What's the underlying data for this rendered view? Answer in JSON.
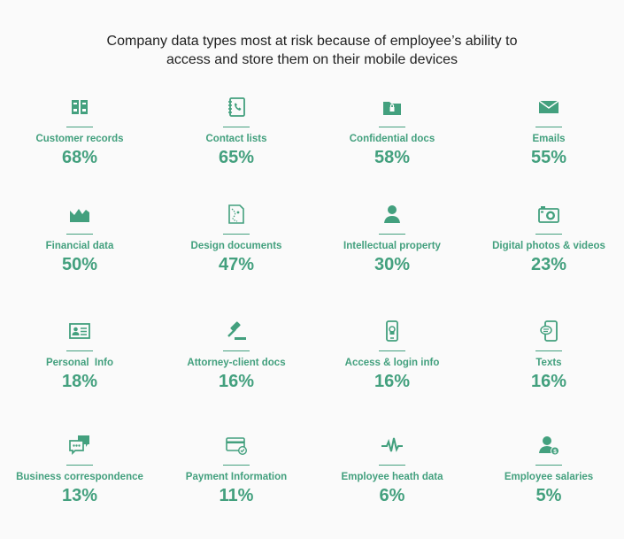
{
  "chart_data": {
    "type": "table",
    "title_lines": [
      "Company data types most at risk because of employee’s ability to",
      "access and store them on their mobile devices"
    ],
    "accent_color": "#43a07e",
    "items": [
      {
        "label": "Customer records",
        "value": 68,
        "display": "68%",
        "icon": "binders-icon"
      },
      {
        "label": "Contact lists",
        "value": 65,
        "display": "65%",
        "icon": "address-book-icon"
      },
      {
        "label": "Confidential docs",
        "value": 58,
        "display": "58%",
        "icon": "locked-folder-icon"
      },
      {
        "label": "Emails",
        "value": 55,
        "display": "55%",
        "icon": "envelope-icon"
      },
      {
        "label": "Financial data",
        "value": 50,
        "display": "50%",
        "icon": "area-chart-icon"
      },
      {
        "label": "Design documents",
        "value": 47,
        "display": "47%",
        "icon": "design-document-icon"
      },
      {
        "label": "Intellectual property",
        "value": 30,
        "display": "30%",
        "icon": "person-icon"
      },
      {
        "label": "Digital photos & videos",
        "value": 23,
        "display": "23%",
        "icon": "camera-icon"
      },
      {
        "label": "Personal  Info",
        "value": 18,
        "display": "18%",
        "icon": "id-card-icon"
      },
      {
        "label": "Attorney-client docs",
        "value": 16,
        "display": "16%",
        "icon": "gavel-icon"
      },
      {
        "label": "Access & login info",
        "value": 16,
        "display": "16%",
        "icon": "phone-lock-icon"
      },
      {
        "label": "Texts",
        "value": 16,
        "display": "16%",
        "icon": "phone-message-icon"
      },
      {
        "label": "Business correspondence",
        "value": 13,
        "display": "13%",
        "icon": "chat-bubbles-icon"
      },
      {
        "label": "Payment Information",
        "value": 11,
        "display": "11%",
        "icon": "credit-card-icon"
      },
      {
        "label": "Employee heath data",
        "value": 6,
        "display": "6%",
        "icon": "heartbeat-icon"
      },
      {
        "label": "Employee salaries",
        "value": 5,
        "display": "5%",
        "icon": "person-dollar-icon"
      }
    ]
  }
}
